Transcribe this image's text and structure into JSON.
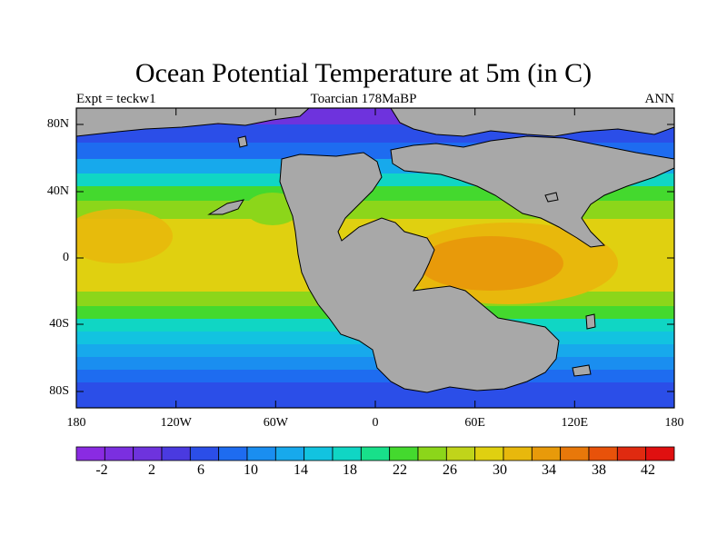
{
  "title": "Ocean Potential Temperature at 5m (in C)",
  "subtitle_left": "Expt = teckw1",
  "subtitle_center": "Toarcian 178MaBP",
  "subtitle_right": "ANN",
  "axes": {
    "lat_labels": [
      "80N",
      "40N",
      "0",
      "40S",
      "80S"
    ],
    "lat_values": [
      80,
      40,
      0,
      -40,
      -80
    ],
    "lon_labels": [
      "180",
      "120W",
      "60W",
      "0",
      "60E",
      "120E",
      "180"
    ],
    "lon_values": [
      -180,
      -120,
      -60,
      0,
      60,
      120,
      180
    ]
  },
  "colorbar": {
    "labels": [
      "-2",
      "2",
      "6",
      "10",
      "14",
      "18",
      "22",
      "26",
      "30",
      "34",
      "38",
      "42"
    ],
    "colors": [
      "#8a2be2",
      "#7b2fe0",
      "#6e33dd",
      "#4a3ae0",
      "#2b4ee8",
      "#1e6cf0",
      "#1a8ef0",
      "#17a9ec",
      "#12c3e0",
      "#10d6c4",
      "#18e08a",
      "#44d92e",
      "#8cd61a",
      "#c0d41a",
      "#e0d010",
      "#e8b80c",
      "#e89a0a",
      "#e8780a",
      "#e8520a",
      "#e02a10",
      "#e01010"
    ]
  },
  "colors": {
    "land": "#a8a8a8",
    "coast": "#000000"
  }
}
